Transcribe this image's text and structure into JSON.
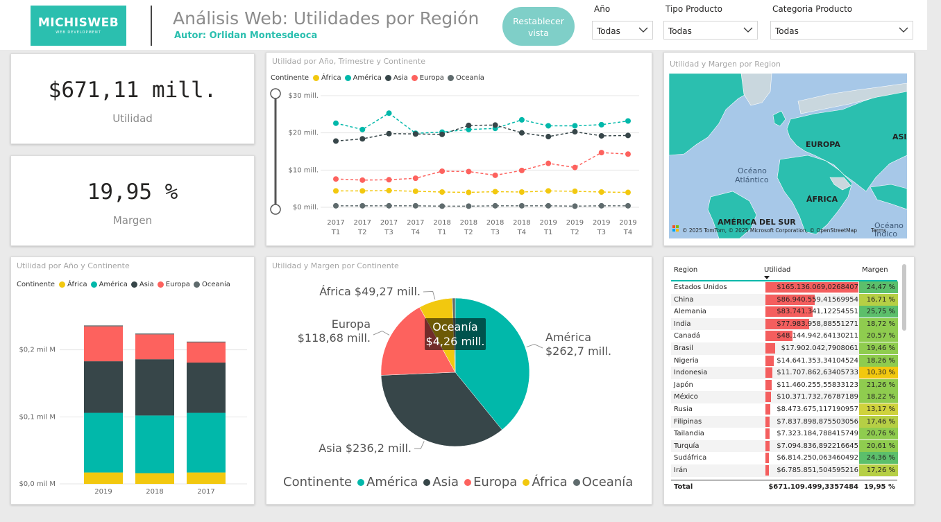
{
  "header": {
    "logo_text": "MICHISWEB",
    "logo_sub": "WEB DEVELOPMENT",
    "title": "Análisis Web: Utilidades por Región",
    "author": "Autor: Orlidan Montesdeoca",
    "reset_button": "Restablecer vista",
    "slicers": [
      {
        "label": "Año",
        "value": "Todas"
      },
      {
        "label": "Tipo Producto",
        "value": "Todas"
      },
      {
        "label": "Categoria Producto",
        "value": "Todas"
      }
    ]
  },
  "colors": {
    "africa": "#f2c80f",
    "america": "#01b8aa",
    "asia": "#374649",
    "europa": "#fd625e",
    "oceania": "#5f6b6d",
    "teal_brand": "#2bbfaf",
    "button_bg": "#7fcfc8"
  },
  "kpis": {
    "utilidad": {
      "value": "$671,11 mill.",
      "label": "Utilidad"
    },
    "margen": {
      "value": "19,95 %",
      "label": "Margen"
    }
  },
  "legend": {
    "title": "Continente",
    "items": [
      "África",
      "América",
      "Asia",
      "Europa",
      "Oceanía"
    ]
  },
  "pie_legend": {
    "title": "Continente",
    "items": [
      "América",
      "Asia",
      "Europa",
      "África",
      "Oceanía"
    ]
  },
  "charts": {
    "line_title": "Utilidad por Año, Trimestre y Continente",
    "map_title": "Utilidad y Margen por Region",
    "bar_title": "Utilidad por Año y Continente",
    "pie_title": "Utilidad y Margen por Continente"
  },
  "chart_data": [
    {
      "type": "line",
      "title": "Utilidad por Año, Trimestre y Continente",
      "x": [
        "2017 T1",
        "2017 T2",
        "2017 T3",
        "2017 T4",
        "2018 T1",
        "2018 T2",
        "2018 T3",
        "2018 T4",
        "2019 T1",
        "2019 T2",
        "2019 T3",
        "2019 T4"
      ],
      "x_top": [
        "2017",
        "2017",
        "2017",
        "2017",
        "2018",
        "2018",
        "2018",
        "2018",
        "2019",
        "2019",
        "2019",
        "2019"
      ],
      "x_bottom": [
        "T1",
        "T2",
        "T3",
        "T4",
        "T1",
        "T2",
        "T3",
        "T4",
        "T1",
        "T2",
        "T3",
        "T4"
      ],
      "y_ticks": [
        "$0 mill.",
        "$10 mill.",
        "$20 mill.",
        "$30 mill."
      ],
      "ylim": [
        0,
        30
      ],
      "series": [
        {
          "name": "África",
          "values": [
            4.4,
            4.4,
            4.5,
            4.3,
            4.1,
            4.0,
            4.2,
            4.1,
            4.4,
            4.3,
            4.1,
            4.0
          ]
        },
        {
          "name": "América",
          "values": [
            22.6,
            20.9,
            25.3,
            19.9,
            20.2,
            20.9,
            21.2,
            23.5,
            21.9,
            21.9,
            22.2,
            23.2
          ]
        },
        {
          "name": "Asia",
          "values": [
            17.8,
            18.4,
            19.8,
            19.7,
            19.6,
            22.0,
            22.1,
            20.0,
            19.0,
            20.3,
            19.2,
            19.3
          ]
        },
        {
          "name": "Europa",
          "values": [
            7.6,
            7.3,
            7.4,
            7.8,
            9.7,
            9.6,
            8.6,
            9.9,
            11.8,
            10.7,
            14.7,
            14.3
          ]
        },
        {
          "name": "Oceanía",
          "values": [
            0.4,
            0.4,
            0.4,
            0.4,
            0.3,
            0.3,
            0.4,
            0.4,
            0.4,
            0.3,
            0.4,
            0.4
          ]
        }
      ]
    },
    {
      "type": "bar",
      "title": "Utilidad por Año y Continente",
      "categories": [
        "2019",
        "2018",
        "2017"
      ],
      "y_ticks": [
        "$0,0 mil M",
        "$0,1 mil M",
        "$0,2 mil M"
      ],
      "ylim": [
        0,
        0.24
      ],
      "series": [
        {
          "name": "África",
          "values": [
            0.017,
            0.016,
            0.017
          ]
        },
        {
          "name": "América",
          "values": [
            0.089,
            0.086,
            0.089
          ]
        },
        {
          "name": "Asia",
          "values": [
            0.077,
            0.084,
            0.075
          ]
        },
        {
          "name": "Europa",
          "values": [
            0.052,
            0.037,
            0.03
          ]
        },
        {
          "name": "Oceanía",
          "values": [
            0.0015,
            0.0014,
            0.0013
          ]
        }
      ]
    },
    {
      "type": "pie",
      "title": "Utilidad y Margen por Continente",
      "slices": [
        {
          "name": "América",
          "value": 262.7,
          "label": "América\n$262,7 mill."
        },
        {
          "name": "Asia",
          "value": 236.2,
          "label": "Asia $236,2 mill."
        },
        {
          "name": "Europa",
          "value": 118.68,
          "label": "Europa\n$118,68 mill."
        },
        {
          "name": "África",
          "value": 49.27,
          "label": "África $49,27 mill."
        },
        {
          "name": "Oceanía",
          "value": 4.26,
          "label": "Oceanía\n$4,26 mill."
        }
      ],
      "tooltip": [
        "Oceanía",
        "$4,26 mill."
      ]
    }
  ],
  "map": {
    "labels": [
      "EUROPA",
      "ASIA",
      "Océano\nAtlántico",
      "ÁFRICA",
      "AMÉRICA DEL SUR",
      "Océano\nÍndico"
    ],
    "attribution": "© 2025 TomTom, © 2025 Microsoft Corporation, © OpenStreetMap",
    "terms": "Terms"
  },
  "table": {
    "headers": [
      "Region",
      "Utilidad",
      "Margen"
    ],
    "rows": [
      {
        "region": "Estados Unidos",
        "utilidad": "$165.136.069,0268407",
        "margen": "24,47 %",
        "u": 1.0,
        "m": 24.47
      },
      {
        "region": "China",
        "utilidad": "$86.940.559,41569954",
        "margen": "16,71 %",
        "u": 0.527,
        "m": 16.71
      },
      {
        "region": "Alemania",
        "utilidad": "$83.741.341,12254551",
        "margen": "25,75 %",
        "u": 0.507,
        "m": 25.75
      },
      {
        "region": "India",
        "utilidad": "$77.983.958,88551271",
        "margen": "18,72 %",
        "u": 0.472,
        "m": 18.72
      },
      {
        "region": "Canadá",
        "utilidad": "$48.144.942,64130211",
        "margen": "20,57 %",
        "u": 0.292,
        "m": 20.57
      },
      {
        "region": "Brasil",
        "utilidad": "$17.902.042,7908061",
        "margen": "19,46 %",
        "u": 0.108,
        "m": 19.46
      },
      {
        "region": "Nigeria",
        "utilidad": "$14.641.353,34104524",
        "margen": "18,26 %",
        "u": 0.089,
        "m": 18.26
      },
      {
        "region": "Indonesia",
        "utilidad": "$11.707.862,63405733",
        "margen": "10,30 %",
        "u": 0.071,
        "m": 10.3
      },
      {
        "region": "Japón",
        "utilidad": "$11.460.255,55833123",
        "margen": "21,26 %",
        "u": 0.069,
        "m": 21.26
      },
      {
        "region": "México",
        "utilidad": "$10.371.732,76787189",
        "margen": "18,22 %",
        "u": 0.063,
        "m": 18.22
      },
      {
        "region": "Rusia",
        "utilidad": "$8.473.675,117190957",
        "margen": "13,17 %",
        "u": 0.051,
        "m": 13.17
      },
      {
        "region": "Filipinas",
        "utilidad": "$7.837.898,875503056",
        "margen": "17,46 %",
        "u": 0.047,
        "m": 17.46
      },
      {
        "region": "Tailandia",
        "utilidad": "$7.323.184,788415749",
        "margen": "20,76 %",
        "u": 0.044,
        "m": 20.76
      },
      {
        "region": "Turquía",
        "utilidad": "$7.094.836,892216645",
        "margen": "20,61 %",
        "u": 0.043,
        "m": 20.61
      },
      {
        "region": "Sudáfrica",
        "utilidad": "$6.814.250,063460492",
        "margen": "24,36 %",
        "u": 0.041,
        "m": 24.36
      },
      {
        "region": "Irán",
        "utilidad": "$6.785.851,504595216",
        "margen": "17,26 %",
        "u": 0.041,
        "m": 17.26
      }
    ],
    "total": {
      "label": "Total",
      "utilidad": "$671.109.499,3357484",
      "margen": "19,95 %"
    }
  }
}
